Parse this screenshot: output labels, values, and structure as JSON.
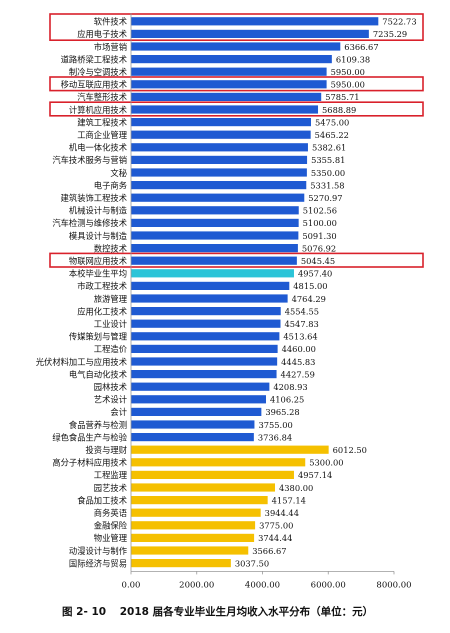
{
  "chart_data": {
    "type": "bar",
    "orientation": "horizontal",
    "xlim": [
      0,
      8000
    ],
    "xticks": [
      "0.00",
      "2000.00",
      "4000.00",
      "6000.00",
      "8000.00"
    ],
    "categories": [
      "软件技术",
      "应用电子技术",
      "市场营销",
      "道路桥梁工程技术",
      "制冷与空调技术",
      "移动互联应用技术",
      "汽车整形技术",
      "计算机应用技术",
      "建筑工程技术",
      "工商企业管理",
      "机电一体化技术",
      "汽车技术服务与营销",
      "文秘",
      "电子商务",
      "建筑装饰工程技术",
      "机械设计与制造",
      "汽车检测与维修技术",
      "模具设计与制造",
      "数控技术",
      "物联网应用技术",
      "本校毕业生平均",
      "市政工程技术",
      "旅游管理",
      "应用化工技术",
      "工业设计",
      "传媒策划与管理",
      "工程造价",
      "光伏材料加工与应用技术",
      "电气自动化技术",
      "园林技术",
      "艺术设计",
      "会计",
      "食品营养与检测",
      "绿色食品生产与检验",
      "投资与理财",
      "高分子材料应用技术",
      "工程监理",
      "园艺技术",
      "食品加工技术",
      "商务英语",
      "金融保险",
      "物业管理",
      "动漫设计与制作",
      "国际经济与贸易"
    ],
    "values": [
      7522.73,
      7235.29,
      6366.67,
      6109.38,
      5950.0,
      5950.0,
      5785.71,
      5688.89,
      5475.0,
      5465.22,
      5382.61,
      5355.81,
      5350.0,
      5331.58,
      5270.97,
      5102.56,
      5100.0,
      5091.3,
      5076.92,
      5045.45,
      4957.4,
      4815.0,
      4764.29,
      4554.55,
      4547.83,
      4513.64,
      4460.0,
      4445.83,
      4427.59,
      4208.93,
      4106.25,
      3965.28,
      3755.0,
      3736.84,
      6012.5,
      5300.0,
      4957.14,
      4380.0,
      4157.14,
      3944.44,
      3775.0,
      3744.44,
      3566.67,
      3037.5
    ],
    "value_labels": [
      "7522.73",
      "7235.29",
      "6366.67",
      "6109.38",
      "5950.00",
      "5950.00",
      "5785.71",
      "5688.89",
      "5475.00",
      "5465.22",
      "5382.61",
      "5355.81",
      "5350.00",
      "5331.58",
      "5270.97",
      "5102.56",
      "5100.00",
      "5091.30",
      "5076.92",
      "5045.45",
      "4957.40",
      "4815.00",
      "4764.29",
      "4554.55",
      "4547.83",
      "4513.64",
      "4460.00",
      "4445.83",
      "4427.59",
      "4208.93",
      "4106.25",
      "3965.28",
      "3755.00",
      "3736.84",
      "6012.50",
      "5300.00",
      "4957.14",
      "4380.00",
      "4157.14",
      "3944.44",
      "3775.00",
      "3744.44",
      "3566.67",
      "3037.50"
    ],
    "bar_colors": {
      "blue": "#1f5ad2",
      "cyan": "#2bc4d8",
      "gold": "#f5c000"
    },
    "bar_color_groups": [
      "blue",
      "blue",
      "blue",
      "blue",
      "blue",
      "blue",
      "blue",
      "blue",
      "blue",
      "blue",
      "blue",
      "blue",
      "blue",
      "blue",
      "blue",
      "blue",
      "blue",
      "blue",
      "blue",
      "blue",
      "cyan",
      "blue",
      "blue",
      "blue",
      "blue",
      "blue",
      "blue",
      "blue",
      "blue",
      "blue",
      "blue",
      "blue",
      "blue",
      "blue",
      "gold",
      "gold",
      "gold",
      "gold",
      "gold",
      "gold",
      "gold",
      "gold",
      "gold",
      "gold"
    ],
    "highlight_boxes": [
      [
        0,
        1
      ],
      [
        5,
        5
      ],
      [
        7,
        7
      ],
      [
        19,
        19
      ]
    ],
    "highlight_color": "#d9212b",
    "grid": false
  },
  "caption": {
    "figure_no": "图 2- 10",
    "title": "2018 届各专业毕业生月均收入水平分布（单位：元）"
  }
}
